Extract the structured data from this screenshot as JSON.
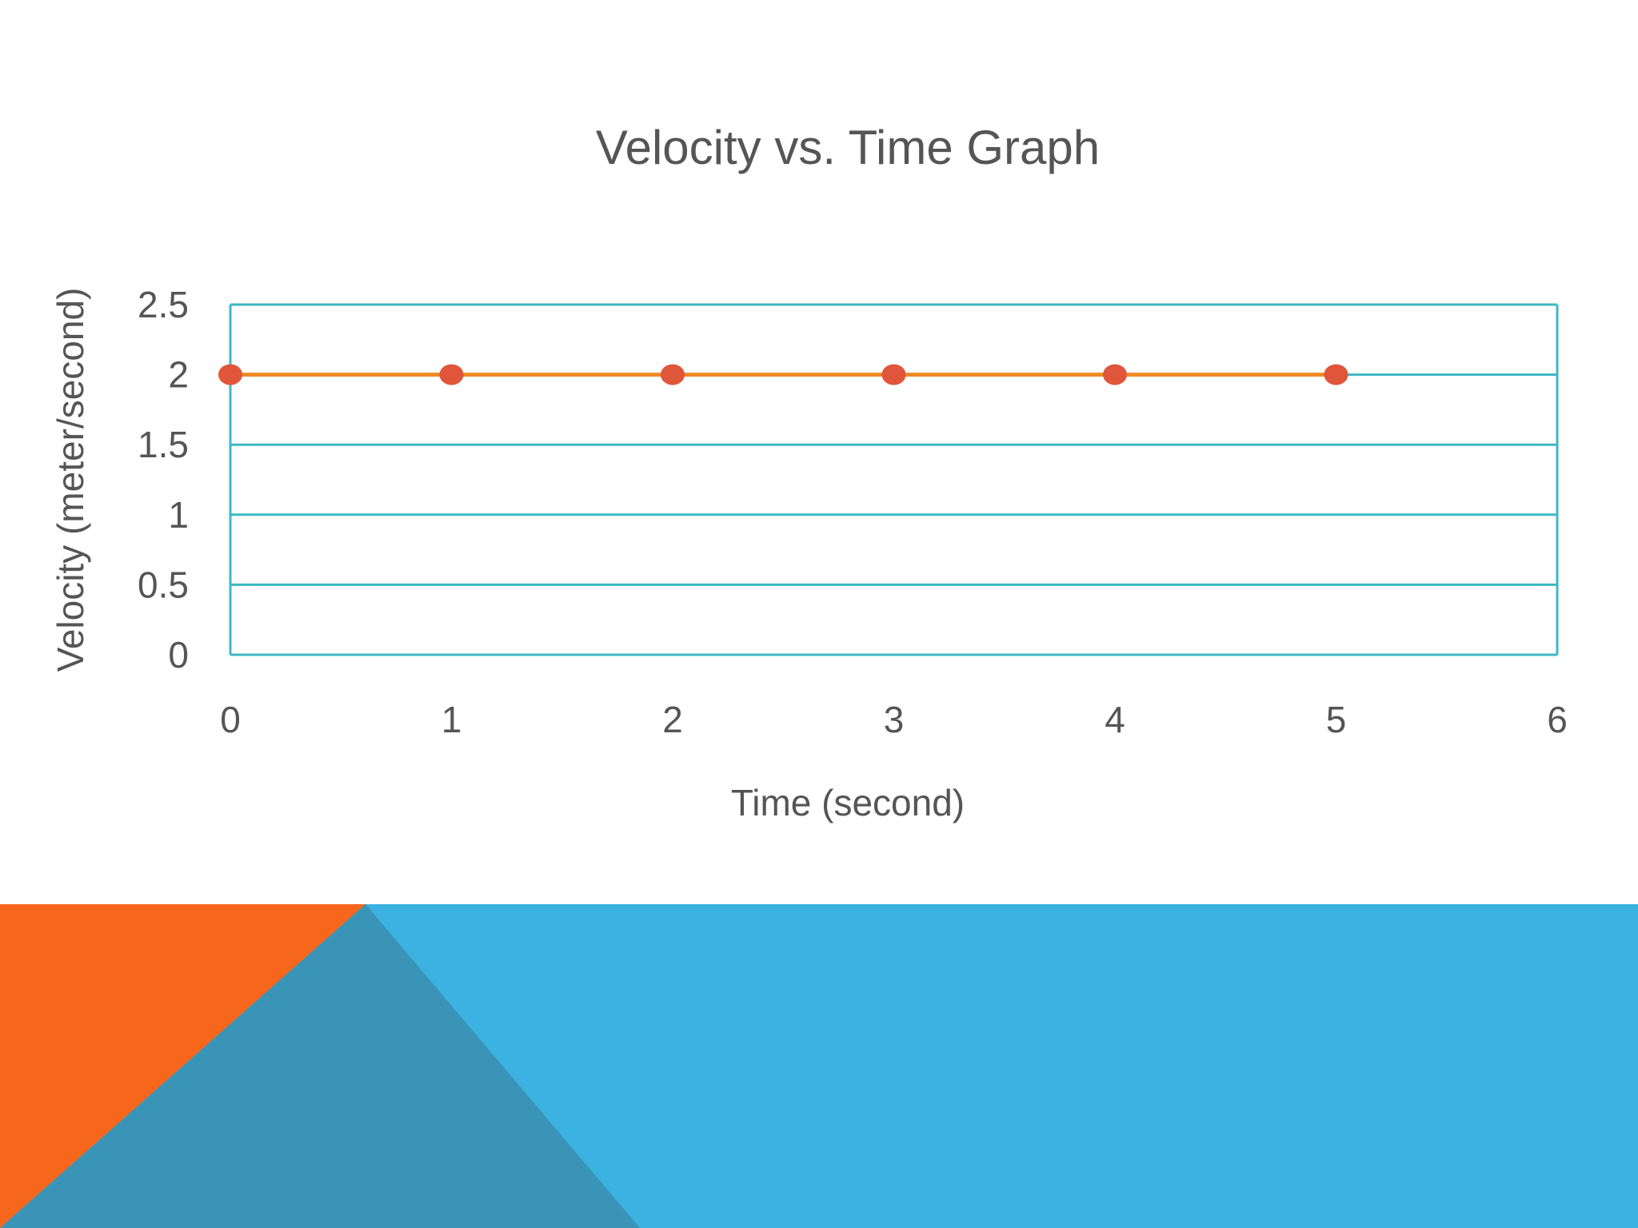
{
  "colors": {
    "grid": "#3db8c4",
    "series_line": "#f08a24",
    "series_marker": "#e0563a",
    "text": "#555555",
    "banner_orange": "#f7671b",
    "banner_blue": "#3bb2e0",
    "banner_dark_blue": "#3a94b8"
  },
  "chart_data": {
    "type": "line",
    "title": "Velocity vs. Time Graph",
    "xlabel": "Time (second)",
    "ylabel": "Velocity (meter/second)",
    "xlim": [
      0,
      6
    ],
    "ylim": [
      0,
      2.5
    ],
    "x_ticks": [
      "0",
      "1",
      "2",
      "3",
      "4",
      "5",
      "6"
    ],
    "y_ticks": [
      "0",
      "0.5",
      "1",
      "1.5",
      "2",
      "2.5"
    ],
    "grid": true,
    "legend": "none",
    "series": [
      {
        "x": [
          0,
          1,
          2,
          3,
          4,
          5
        ],
        "values": [
          2,
          2,
          2,
          2,
          2,
          2
        ]
      }
    ]
  }
}
